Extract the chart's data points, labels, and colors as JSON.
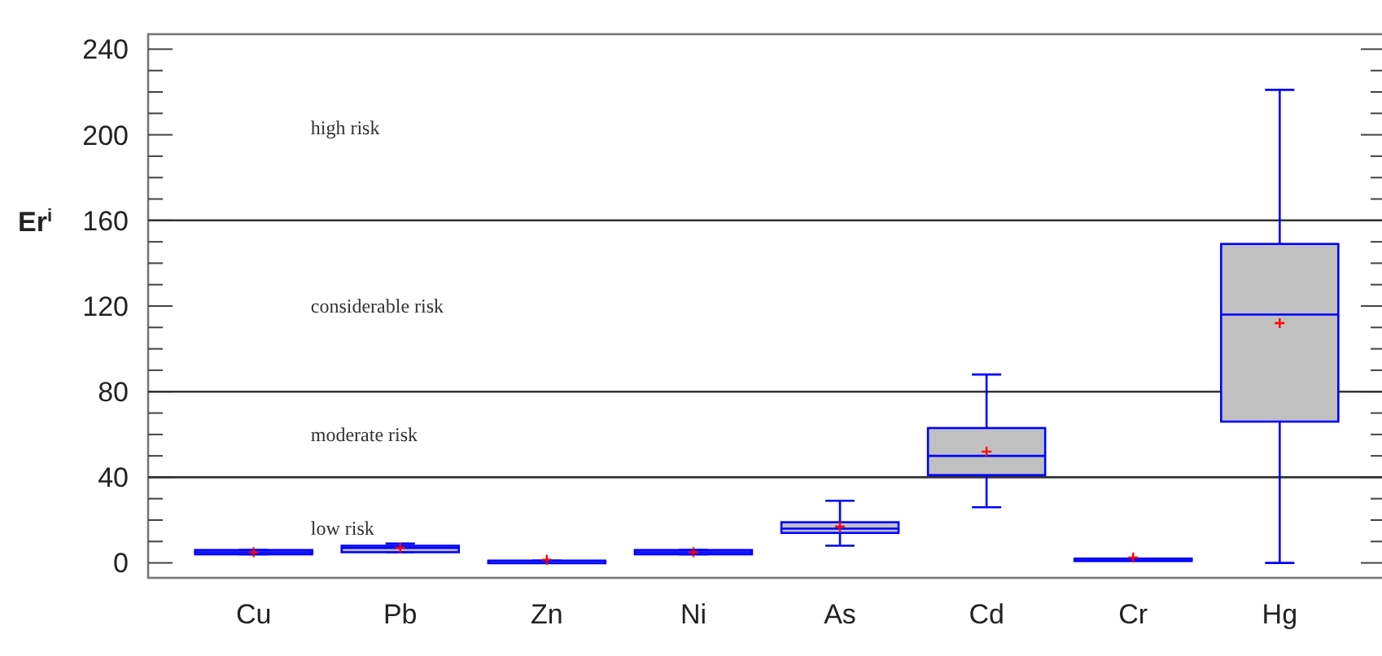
{
  "chart_data": {
    "type": "box",
    "ylabel": "Er$^{i}$",
    "categories": [
      "Cu",
      "Pb",
      "Zn",
      "Ni",
      "As",
      "Cd",
      "Cr",
      "Hg"
    ],
    "color": "#0000ff",
    "boxes": [
      {
        "low": 4,
        "q1": 4,
        "median": 5,
        "q3": 6,
        "high": 6,
        "mean": 5
      },
      {
        "low": 5,
        "q1": 5,
        "median": 7,
        "q3": 8,
        "high": 9,
        "mean": 7
      },
      {
        "low": 1,
        "q1": 1,
        "median": 1,
        "q3": 1,
        "high": 1,
        "mean": 1.5
      },
      {
        "low": 4,
        "q1": 4,
        "median": 5,
        "q3": 6,
        "high": 6,
        "mean": 5
      },
      {
        "low": 8,
        "q1": 14,
        "median": 16,
        "q3": 19,
        "high": 29,
        "mean": 17
      },
      {
        "low": 26,
        "q1": 41,
        "median": 50,
        "q3": 63,
        "high": 88,
        "mean": 52
      },
      {
        "low": 2,
        "q1": 2,
        "median": 2,
        "q3": 2,
        "high": 2,
        "mean": 2.5
      },
      {
        "low": 0,
        "q1": 66,
        "median": 116,
        "q3": 149,
        "high": 221,
        "mean": 112
      }
    ],
    "ylim": [
      -7,
      247
    ],
    "yticks": [
      0,
      {
        "value": 10,
        "label": null
      },
      {
        "value": 20,
        "label": null
      },
      {
        "value": 30,
        "label": null
      },
      40,
      {
        "value": 50,
        "label": null
      },
      {
        "value": 60,
        "label": null
      },
      {
        "value": 70,
        "label": null
      },
      80,
      {
        "value": 90,
        "label": null
      },
      {
        "value": 100,
        "label": null
      },
      {
        "value": 110,
        "label": null
      },
      120,
      {
        "value": 130,
        "label": null
      },
      {
        "value": 140,
        "label": null
      },
      {
        "value": 150,
        "label": null
      },
      160,
      {
        "value": 170,
        "label": null
      },
      {
        "value": 180,
        "label": null
      },
      {
        "value": 190,
        "label": null
      },
      200,
      {
        "value": 210,
        "label": null
      },
      {
        "value": 220,
        "label": null
      },
      {
        "value": 230,
        "label": null
      },
      240
    ],
    "ref_lines": [
      {
        "axis": "y",
        "value": 40,
        "color": "#333333"
      },
      {
        "axis": "y",
        "value": 80,
        "color": "#333333"
      },
      {
        "axis": "y",
        "value": 160,
        "color": "#333333"
      }
    ],
    "annotations": [
      "low risk",
      "moderate risk",
      "considerable  risk",
      "high risk"
    ],
    "grid": false
  }
}
